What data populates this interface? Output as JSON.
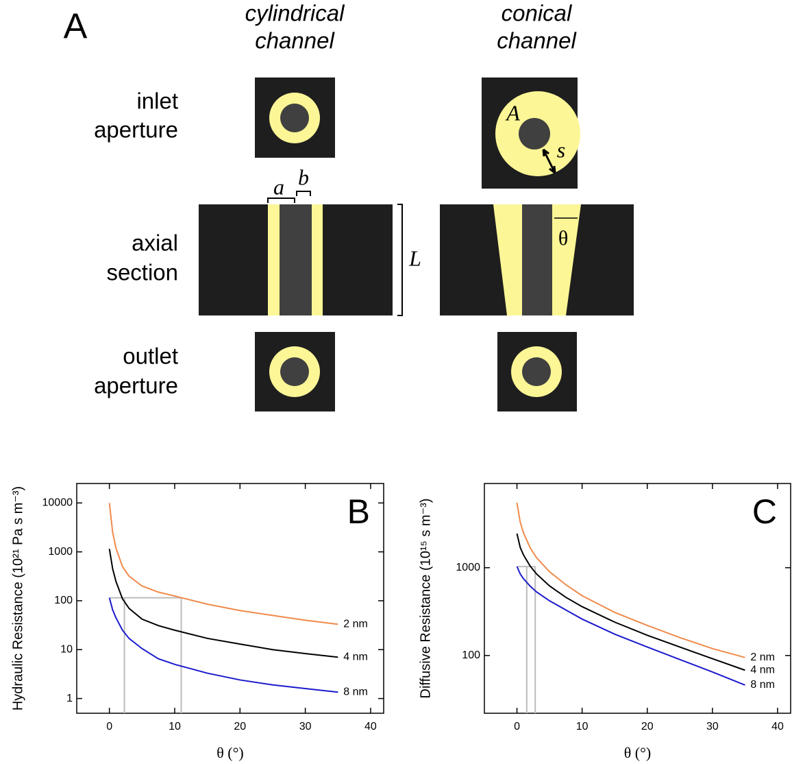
{
  "diagram": {
    "panel_label": "A",
    "columns": [
      [
        "cylindrical",
        "channel"
      ],
      [
        "conical",
        "channel"
      ]
    ],
    "rows": [
      [
        "inlet",
        "aperture"
      ],
      [
        "axial",
        "section"
      ],
      [
        "outlet",
        "aperture"
      ]
    ],
    "symbols": {
      "a": "a",
      "b": "b",
      "L": "L",
      "A": "A",
      "s": "s",
      "theta": "θ"
    }
  },
  "chart_data": [
    {
      "type": "line",
      "panel_label": "B",
      "xlabel": "θ (°)",
      "ylabel": "Hydraulic Resistance  (10²¹ Pa s m⁻³)",
      "x": [
        0,
        0.5,
        1,
        2,
        3,
        5,
        7.5,
        10,
        15,
        20,
        25,
        30,
        35
      ],
      "series": [
        {
          "name": "2 nm",
          "color": "#f08a4b",
          "values": [
            10000,
            2500,
            1200,
            500,
            320,
            200,
            150,
            125,
            85,
            63,
            50,
            40,
            33
          ]
        },
        {
          "name": "4 nm",
          "color": "#000000",
          "values": [
            1150,
            450,
            250,
            110,
            70,
            42,
            31,
            25,
            17,
            13,
            10,
            8.3,
            7
          ]
        },
        {
          "name": "8 nm",
          "color": "#1a1acc",
          "values": [
            115,
            65,
            45,
            25,
            17,
            10.5,
            6.5,
            5,
            3.3,
            2.4,
            1.9,
            1.6,
            1.35
          ]
        }
      ],
      "guides": {
        "color": "#bbbbbb",
        "lines": [
          {
            "x": [
              2.3,
              2.3
            ],
            "y": [
              0.5,
              115
            ]
          },
          {
            "x": [
              0,
              11
            ],
            "y": [
              115,
              115
            ]
          },
          {
            "x": [
              11,
              11
            ],
            "y": [
              0.5,
              115
            ]
          }
        ]
      },
      "xlim": [
        -5,
        42
      ],
      "xticks": [
        0,
        10,
        20,
        30,
        40
      ],
      "ylim": [
        0.5,
        25000
      ],
      "yticks": [
        1,
        10,
        100,
        1000,
        10000
      ],
      "log_y": true
    },
    {
      "type": "line",
      "panel_label": "C",
      "xlabel": "θ (°)",
      "ylabel": "Diffusive Resistance  (10¹⁵ s m⁻³)",
      "x": [
        0,
        0.5,
        1,
        2,
        3,
        5,
        7.5,
        10,
        15,
        20,
        25,
        30,
        35
      ],
      "series": [
        {
          "name": "2 nm",
          "color": "#f08a4b",
          "values": [
            5500,
            3300,
            2500,
            1700,
            1300,
            900,
            640,
            480,
            310,
            220,
            160,
            120,
            95
          ]
        },
        {
          "name": "4 nm",
          "color": "#000000",
          "values": [
            2450,
            1700,
            1400,
            1050,
            850,
            620,
            460,
            360,
            240,
            170,
            125,
            92,
            68
          ]
        },
        {
          "name": "8 nm",
          "color": "#1a1acc",
          "values": [
            1030,
            850,
            750,
            620,
            530,
            420,
            330,
            260,
            175,
            125,
            90,
            65,
            46
          ]
        }
      ],
      "guides": {
        "color": "#bbbbbb",
        "lines": [
          {
            "x": [
              0,
              2.8
            ],
            "y": [
              1030,
              1030
            ]
          },
          {
            "x": [
              1.5,
              1.5
            ],
            "y": [
              22,
              1030
            ]
          },
          {
            "x": [
              2.8,
              2.8
            ],
            "y": [
              22,
              1030
            ]
          }
        ]
      },
      "xlim": [
        -5,
        42
      ],
      "xticks": [
        0,
        10,
        20,
        30,
        40
      ],
      "ylim": [
        22,
        9100
      ],
      "yticks": [
        100,
        1000
      ],
      "log_y": true
    }
  ]
}
